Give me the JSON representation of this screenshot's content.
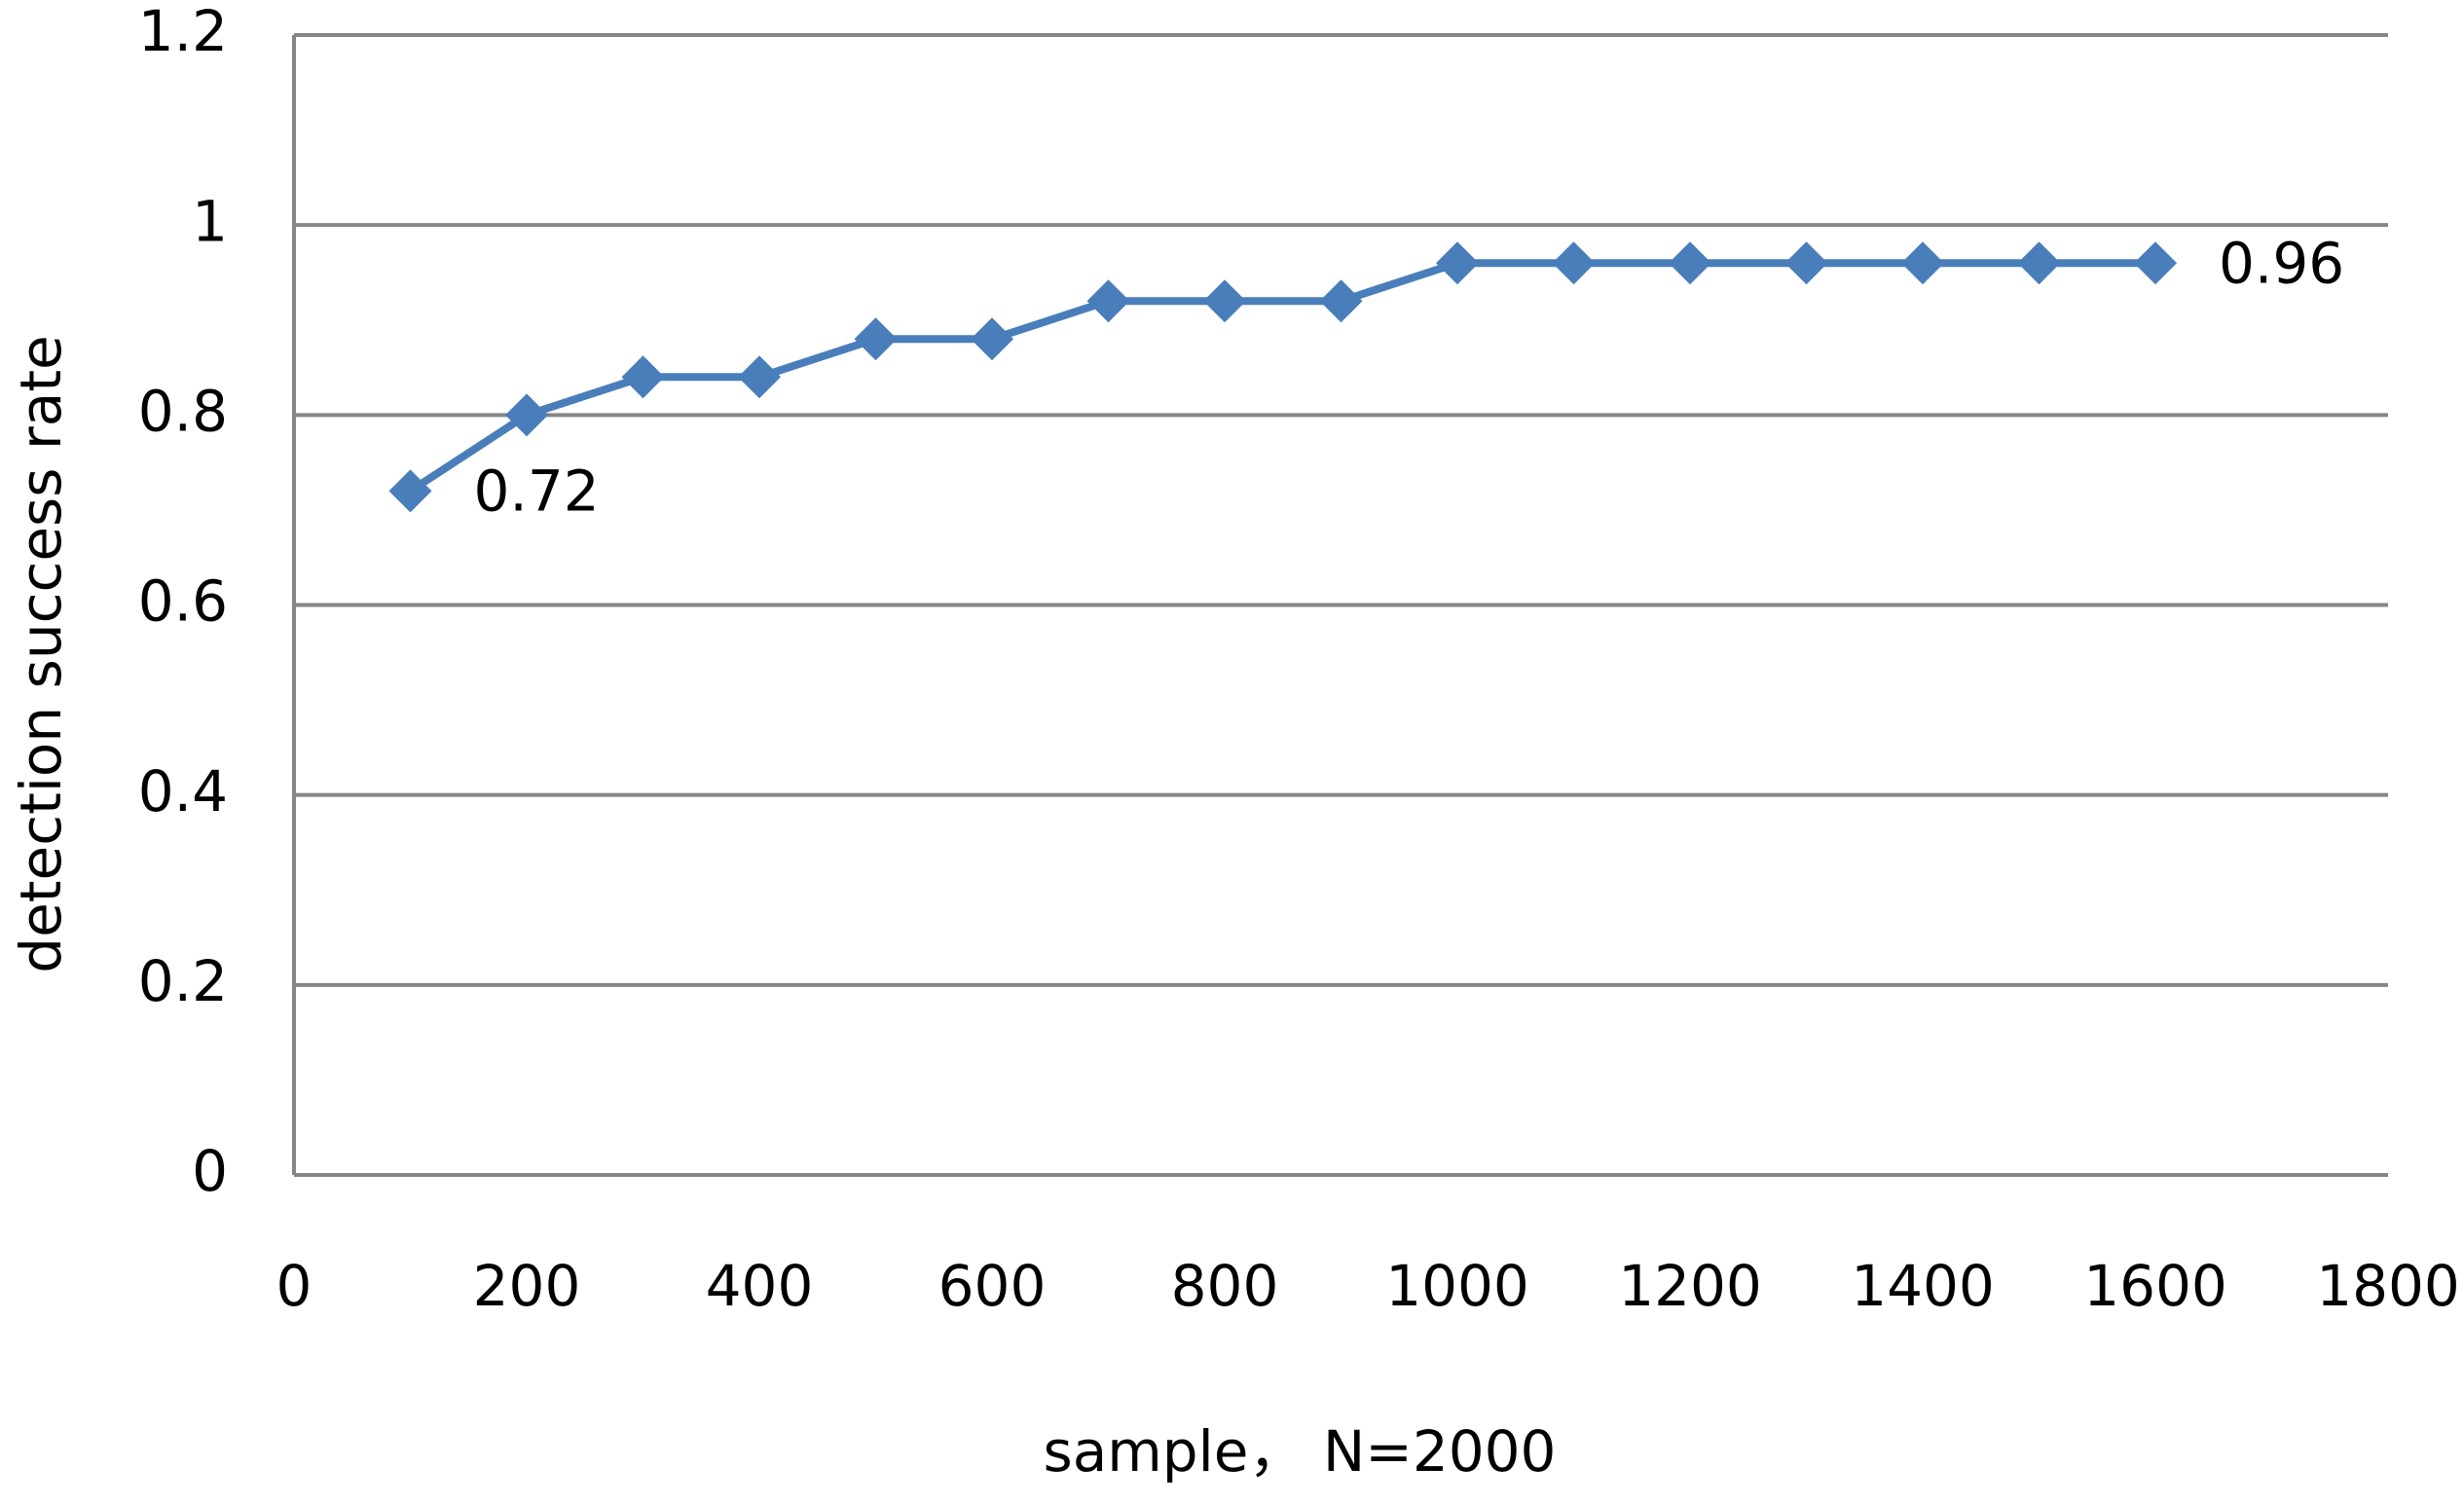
{
  "chart_data": {
    "type": "line",
    "x_label": "sample， N=2000",
    "y_label": "detection success rate",
    "x": [
      100,
      200,
      300,
      400,
      500,
      600,
      700,
      800,
      900,
      1000,
      1100,
      1200,
      1300,
      1400,
      1500,
      1600
    ],
    "series": [
      {
        "name": "detection success rate",
        "color": "#4a7ebb",
        "values": [
          0.72,
          0.8,
          0.84,
          0.84,
          0.88,
          0.88,
          0.92,
          0.92,
          0.92,
          0.96,
          0.96,
          0.96,
          0.96,
          0.96,
          0.96,
          0.96
        ],
        "value_labels": [
          "0.72",
          null,
          null,
          null,
          null,
          null,
          null,
          null,
          null,
          null,
          null,
          null,
          null,
          null,
          null,
          "0.96"
        ]
      }
    ],
    "xlim": [
      0,
      1800
    ],
    "xticks": [
      0,
      200,
      400,
      600,
      800,
      1000,
      1200,
      1400,
      1600,
      1800
    ],
    "ylim": [
      0,
      1.2
    ],
    "yticks": [
      0,
      0.2,
      0.4,
      0.6,
      0.8,
      1,
      1.2
    ],
    "grid": true
  }
}
